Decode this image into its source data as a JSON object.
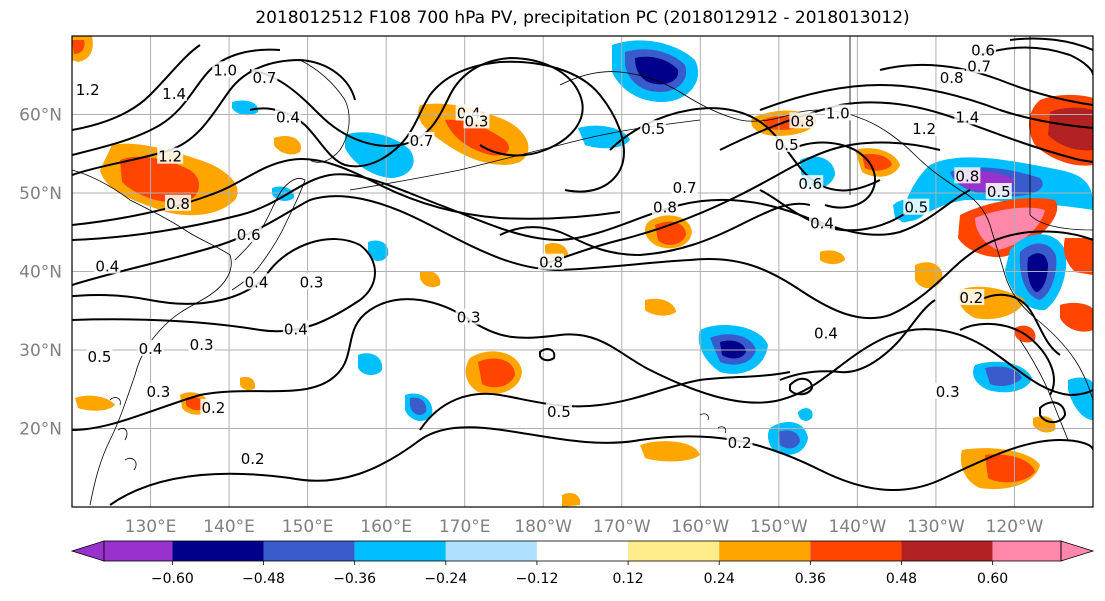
{
  "title": "2018012512 F108 700 hPa PV, precipitation PC (2018012912 - 2018013012)",
  "map": {
    "projection": "PlateCarree",
    "lon_range": [
      "120°E",
      "250°E"
    ],
    "lat_range": [
      10,
      70
    ],
    "gridlines": true,
    "lat_labels": [
      {
        "lat": 60,
        "label": "60°N"
      },
      {
        "lat": 50,
        "label": "50°N"
      },
      {
        "lat": 40,
        "label": "40°N"
      },
      {
        "lat": 30,
        "label": "30°N"
      },
      {
        "lat": 20,
        "label": "20°N"
      }
    ],
    "lon_labels": [
      {
        "lon": 130,
        "label": "130°E"
      },
      {
        "lon": 140,
        "label": "140°E"
      },
      {
        "lon": 150,
        "label": "150°E"
      },
      {
        "lon": 160,
        "label": "160°E"
      },
      {
        "lon": 170,
        "label": "170°E"
      },
      {
        "lon": 180,
        "label": "180°W"
      },
      {
        "lon": 190,
        "label": "170°W"
      },
      {
        "lon": 200,
        "label": "160°W"
      },
      {
        "lon": 210,
        "label": "150°W"
      },
      {
        "lon": 220,
        "label": "140°W"
      },
      {
        "lon": 230,
        "label": "130°W"
      },
      {
        "lon": 240,
        "label": "120°W"
      }
    ],
    "contour_labels": [
      {
        "text": "1.2",
        "lon": 122,
        "lat": 63
      },
      {
        "text": "1.4",
        "lon": 133,
        "lat": 62.5
      },
      {
        "text": "1.0",
        "lon": 139.5,
        "lat": 65.5
      },
      {
        "text": "0.7",
        "lon": 144.5,
        "lat": 64.5
      },
      {
        "text": "0.4",
        "lon": 147.5,
        "lat": 59.5
      },
      {
        "text": "1.2",
        "lon": 132.5,
        "lat": 54.5
      },
      {
        "text": "0.8",
        "lon": 133.5,
        "lat": 48.5
      },
      {
        "text": "0.6",
        "lon": 142.5,
        "lat": 44.5
      },
      {
        "text": "0.4",
        "lon": 124.5,
        "lat": 40.5
      },
      {
        "text": "0.4",
        "lon": 143.5,
        "lat": 38.5
      },
      {
        "text": "0.3",
        "lon": 150.5,
        "lat": 38.5
      },
      {
        "text": "0.4",
        "lon": 148.5,
        "lat": 32.5
      },
      {
        "text": "0.5",
        "lon": 123.5,
        "lat": 29
      },
      {
        "text": "0.4",
        "lon": 130,
        "lat": 30
      },
      {
        "text": "0.3",
        "lon": 136.5,
        "lat": 30.5
      },
      {
        "text": "0.3",
        "lon": 131,
        "lat": 24.5
      },
      {
        "text": "0.2",
        "lon": 138,
        "lat": 22.5
      },
      {
        "text": "0.2",
        "lon": 143,
        "lat": 16
      },
      {
        "text": "0.4",
        "lon": 170.5,
        "lat": 60
      },
      {
        "text": "0.3",
        "lon": 171.5,
        "lat": 59
      },
      {
        "text": "0.7",
        "lon": 164.5,
        "lat": 56.5
      },
      {
        "text": "0.3",
        "lon": 170.5,
        "lat": 34
      },
      {
        "text": "0.8",
        "lon": 181,
        "lat": 41
      },
      {
        "text": "0.5",
        "lon": 182,
        "lat": 22
      },
      {
        "text": "0.5",
        "lon": 194,
        "lat": 58
      },
      {
        "text": "0.7",
        "lon": 198,
        "lat": 50.5
      },
      {
        "text": "0.8",
        "lon": 195.5,
        "lat": 48
      },
      {
        "text": "0.2",
        "lon": 205,
        "lat": 18
      },
      {
        "text": "0.5",
        "lon": 211,
        "lat": 56
      },
      {
        "text": "0.6",
        "lon": 214,
        "lat": 51
      },
      {
        "text": "0.4",
        "lon": 215.5,
        "lat": 46
      },
      {
        "text": "0.4",
        "lon": 216,
        "lat": 32
      },
      {
        "text": "0.8",
        "lon": 213,
        "lat": 59
      },
      {
        "text": "1.0",
        "lon": 217.5,
        "lat": 60
      },
      {
        "text": "1.2",
        "lon": 228.5,
        "lat": 58
      },
      {
        "text": "1.4",
        "lon": 234,
        "lat": 59.5
      },
      {
        "text": "0.6",
        "lon": 236,
        "lat": 68
      },
      {
        "text": "0.7",
        "lon": 235.5,
        "lat": 66
      },
      {
        "text": "0.8",
        "lon": 232,
        "lat": 64.5
      },
      {
        "text": "0.5",
        "lon": 227.5,
        "lat": 48
      },
      {
        "text": "0.8",
        "lon": 234,
        "lat": 52
      },
      {
        "text": "0.5",
        "lon": 238,
        "lat": 50
      },
      {
        "text": "0.2",
        "lon": 234.5,
        "lat": 36.5
      },
      {
        "text": "0.3",
        "lon": 231.5,
        "lat": 24.5
      }
    ]
  },
  "colorbar": {
    "colors": [
      "#9932cc",
      "#00008b",
      "#3a5bcc",
      "#00bfff",
      "#b0e0ff",
      "#ffffff",
      "#ffec8b",
      "#ffa500",
      "#ff4500",
      "#b22222",
      "#ff88aa"
    ],
    "tick_labels": [
      "−0.60",
      "−0.48",
      "−0.36",
      "−0.24",
      "−0.12",
      "0.12",
      "0.24",
      "0.36",
      "0.48",
      "0.60"
    ]
  }
}
